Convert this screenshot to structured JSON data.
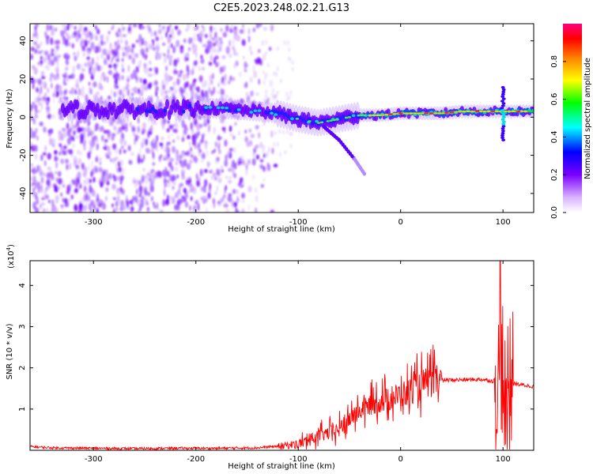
{
  "title": "C2E5.2023.248.02.21.G13",
  "chart_data": [
    {
      "type": "heatmap",
      "title": "",
      "xlabel": "Height of straight line (km)",
      "ylabel": "Frequency (Hz)",
      "xlim": [
        -362,
        130
      ],
      "ylim": [
        -50,
        49
      ],
      "xticks": [
        -300,
        -200,
        -100,
        0,
        100
      ],
      "yticks": [
        -40,
        -20,
        0,
        20,
        40
      ],
      "colorbar": {
        "label": "Normalized spectral amplitude",
        "range": [
          0,
          1
        ],
        "ticks": [
          "0.0",
          "0.2",
          "0.4",
          "0.6",
          "0.8"
        ],
        "colors": [
          "#ffffff",
          "#d9b3ff",
          "#7a00ff",
          "#0000ff",
          "#00ffff",
          "#00ff00",
          "#ffff00",
          "#ff8000",
          "#ff0000",
          "#ff0080"
        ]
      },
      "features": {
        "noise_region_x": [
          -362,
          -140
        ],
        "track": [
          {
            "x": -200,
            "f": 5
          },
          {
            "x": -160,
            "f": 4
          },
          {
            "x": -120,
            "f": 2
          },
          {
            "x": -100,
            "f": -1
          },
          {
            "x": -80,
            "f": -3
          },
          {
            "x": -60,
            "f": -1
          },
          {
            "x": -40,
            "f": 1
          },
          {
            "x": -20,
            "f": 1
          },
          {
            "x": 0,
            "f": 2
          },
          {
            "x": 20,
            "f": 2
          },
          {
            "x": 40,
            "f": 2
          },
          {
            "x": 60,
            "f": 3
          },
          {
            "x": 80,
            "f": 3
          },
          {
            "x": 100,
            "f": 3
          },
          {
            "x": 130,
            "f": 3
          }
        ],
        "branch": [
          {
            "x": -75,
            "f": -5
          },
          {
            "x": -60,
            "f": -12
          },
          {
            "x": -45,
            "f": -22
          },
          {
            "x": -35,
            "f": -30
          }
        ],
        "spike_x": 100,
        "spike_f_range": [
          -12,
          16
        ]
      }
    },
    {
      "type": "line",
      "title": "",
      "xlabel": "Height of straight line (km)",
      "ylabel": "SNR (10 * v/v)",
      "yscale_label": "(x10",
      "yscale_exp": "4",
      "yscale_close": ")",
      "xlim": [
        -362,
        130
      ],
      "ylim": [
        0,
        4.6
      ],
      "xticks": [
        -300,
        -200,
        -100,
        0,
        100
      ],
      "yticks": [
        1,
        2,
        3,
        4
      ],
      "color": "#ff0000",
      "series": [
        {
          "x": [
            -362,
            -340,
            -300,
            -260,
            -220,
            -180,
            -140,
            -120,
            -100,
            -90,
            -80,
            -70,
            -60,
            -50,
            -40,
            -30,
            -20,
            -10,
            0,
            10,
            20,
            30,
            40,
            60,
            80,
            90,
            95,
            100,
            104,
            108,
            115,
            130
          ],
          "values": [
            0.09,
            0.06,
            0.05,
            0.04,
            0.05,
            0.05,
            0.06,
            0.1,
            0.15,
            0.25,
            0.35,
            0.42,
            0.5,
            0.75,
            0.95,
            1.1,
            1.2,
            1.25,
            1.35,
            1.45,
            1.6,
            1.66,
            1.7,
            1.71,
            1.72,
            1.68,
            1.75,
            1.7,
            1.65,
            1.63,
            1.6,
            1.55
          ]
        }
      ]
    }
  ]
}
